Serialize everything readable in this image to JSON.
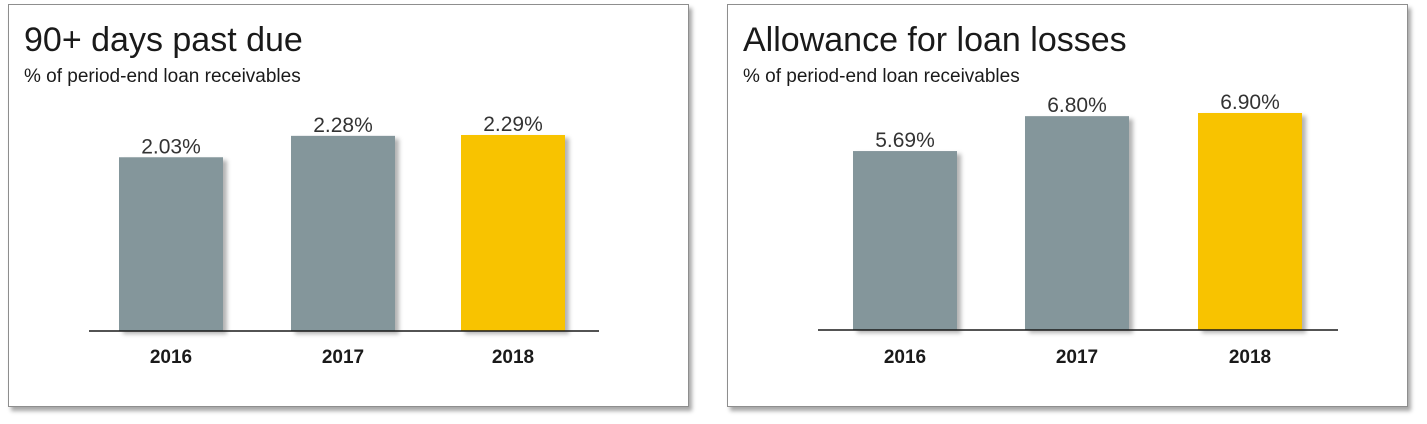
{
  "chart_data": [
    {
      "type": "bar",
      "title": "90+ days past due",
      "subtitle": "% of period-end loan receivables",
      "categories": [
        "2016",
        "2017",
        "2018"
      ],
      "values": [
        2.03,
        2.28,
        2.29
      ],
      "value_labels": [
        "2.03%",
        "2.28%",
        "2.29%"
      ],
      "colors": [
        "#84969b",
        "#84969b",
        "#f8c300"
      ],
      "ylim": [
        0,
        2.29
      ],
      "grid": false
    },
    {
      "type": "bar",
      "title": "Allowance for loan losses",
      "subtitle": "% of period-end loan receivables",
      "categories": [
        "2016",
        "2017",
        "2018"
      ],
      "values": [
        5.69,
        6.8,
        6.9
      ],
      "value_labels": [
        "5.69%",
        "6.80%",
        "6.90%"
      ],
      "colors": [
        "#84969b",
        "#84969b",
        "#f8c300"
      ],
      "ylim": [
        0,
        6.9
      ],
      "grid": false
    }
  ]
}
